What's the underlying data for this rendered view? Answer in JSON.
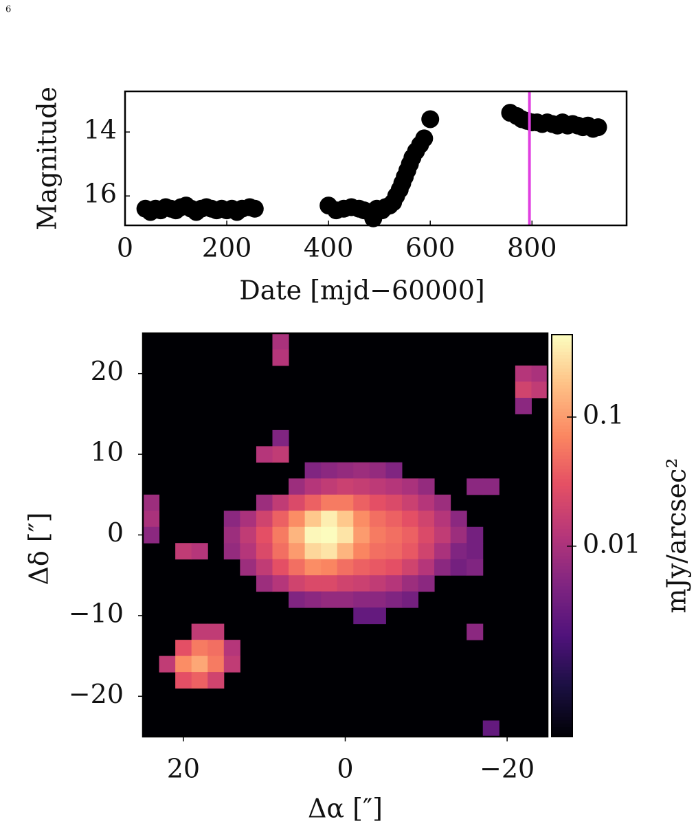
{
  "page_number": "6",
  "chart_data": [
    {
      "type": "scatter",
      "xlabel": "Date [mjd−60000]",
      "ylabel": "Magnitude",
      "color": "#000000",
      "x": [
        40,
        50,
        60,
        70,
        80,
        90,
        100,
        110,
        120,
        130,
        140,
        150,
        160,
        170,
        180,
        190,
        200,
        210,
        220,
        230,
        245,
        255,
        400,
        415,
        430,
        445,
        460,
        470,
        480,
        488,
        495,
        505,
        512,
        520,
        527,
        533,
        540,
        545,
        550,
        555,
        560,
        565,
        572,
        580,
        588,
        600,
        757,
        770,
        780,
        790,
        800,
        810,
        820,
        830,
        840,
        850,
        860,
        870,
        880,
        890,
        900,
        910,
        920,
        930
      ],
      "values": [
        16.4,
        16.5,
        16.4,
        16.45,
        16.35,
        16.4,
        16.45,
        16.35,
        16.3,
        16.4,
        16.5,
        16.4,
        16.35,
        16.4,
        16.45,
        16.4,
        16.45,
        16.4,
        16.5,
        16.4,
        16.35,
        16.4,
        16.3,
        16.45,
        16.4,
        16.35,
        16.4,
        16.45,
        16.5,
        16.7,
        16.4,
        16.45,
        16.35,
        16.3,
        16.2,
        16.0,
        15.8,
        15.6,
        15.4,
        15.2,
        15.0,
        14.8,
        14.6,
        14.4,
        14.2,
        13.6,
        13.4,
        13.5,
        13.6,
        13.65,
        13.7,
        13.7,
        13.75,
        13.7,
        13.75,
        13.8,
        13.7,
        13.8,
        13.75,
        13.8,
        13.85,
        13.8,
        13.9,
        13.85
      ],
      "xlim": [
        0,
        986
      ],
      "ylim": [
        16.92,
        12.73
      ],
      "xticks": [
        0,
        200,
        400,
        600,
        800
      ],
      "yticks": [
        14,
        16
      ],
      "vlines": [
        {
          "x": 795,
          "color": "#e040e0"
        }
      ]
    },
    {
      "type": "heatmap",
      "xlabel": "Δα [″]",
      "ylabel": "Δδ [″]",
      "colorbar_label": "mJy/arcsec²",
      "colormap": "magma",
      "color_scale": "log",
      "clim": [
        0.000335,
        0.435
      ],
      "cticks": [
        0.1,
        0.01
      ],
      "xlim": [
        25,
        -25
      ],
      "ylim": [
        -25,
        25
      ],
      "xticks": [
        20,
        0,
        {
          "value": -20,
          "label": "−20"
        }
      ],
      "yticks": [
        20,
        10,
        0,
        {
          "value": -10,
          "label": "−10"
        },
        {
          "value": -20,
          "label": "−20"
        }
      ],
      "x": [
        24,
        22,
        20,
        18,
        16,
        14,
        12,
        10,
        8,
        6,
        4,
        2,
        0,
        -2,
        -4,
        -6,
        -8,
        -10,
        -12,
        -14,
        -16,
        -18,
        -20,
        -22,
        -24
      ],
      "y": [
        24,
        22,
        20,
        18,
        16,
        14,
        12,
        10,
        8,
        6,
        4,
        2,
        0,
        -2,
        -4,
        -6,
        -8,
        -10,
        -12,
        -14,
        -16,
        -18,
        -20,
        -22,
        -24
      ],
      "z": [
        [
          null,
          null,
          null,
          null,
          null,
          null,
          null,
          null,
          0.01,
          null,
          null,
          null,
          null,
          null,
          null,
          null,
          null,
          null,
          null,
          null,
          null,
          null,
          null,
          null,
          null
        ],
        [
          null,
          null,
          null,
          null,
          null,
          null,
          null,
          null,
          0.012,
          null,
          null,
          null,
          null,
          null,
          null,
          null,
          null,
          null,
          null,
          null,
          null,
          null,
          null,
          null,
          null
        ],
        [
          null,
          null,
          null,
          null,
          null,
          null,
          null,
          null,
          null,
          null,
          null,
          null,
          null,
          null,
          null,
          null,
          null,
          null,
          null,
          null,
          null,
          null,
          null,
          0.012,
          0.01
        ],
        [
          null,
          null,
          null,
          null,
          null,
          null,
          null,
          null,
          null,
          null,
          null,
          null,
          null,
          null,
          null,
          null,
          null,
          null,
          null,
          null,
          null,
          null,
          null,
          0.02,
          0.015
        ],
        [
          null,
          null,
          null,
          null,
          null,
          null,
          null,
          null,
          null,
          null,
          null,
          null,
          null,
          null,
          null,
          null,
          null,
          null,
          null,
          null,
          null,
          null,
          null,
          0.006,
          null
        ],
        [
          null,
          null,
          null,
          null,
          null,
          null,
          null,
          null,
          null,
          null,
          null,
          null,
          null,
          null,
          null,
          null,
          null,
          null,
          null,
          null,
          null,
          null,
          null,
          null,
          null
        ],
        [
          null,
          null,
          null,
          null,
          null,
          null,
          null,
          null,
          0.005,
          null,
          null,
          null,
          null,
          null,
          null,
          null,
          null,
          null,
          null,
          null,
          null,
          null,
          null,
          null,
          null
        ],
        [
          null,
          null,
          null,
          null,
          null,
          null,
          null,
          0.012,
          0.015,
          null,
          null,
          null,
          null,
          null,
          null,
          null,
          null,
          null,
          null,
          null,
          null,
          null,
          null,
          null,
          null
        ],
        [
          null,
          null,
          null,
          null,
          null,
          null,
          null,
          null,
          null,
          null,
          0.005,
          0.006,
          0.007,
          0.008,
          0.007,
          0.005,
          null,
          null,
          null,
          null,
          null,
          null,
          null,
          null,
          null
        ],
        [
          null,
          null,
          null,
          null,
          null,
          null,
          null,
          null,
          null,
          0.008,
          0.012,
          0.015,
          0.018,
          0.016,
          0.014,
          0.012,
          0.01,
          0.007,
          null,
          null,
          0.006,
          0.006,
          null,
          null,
          null
        ],
        [
          0.008,
          null,
          null,
          null,
          null,
          null,
          null,
          0.008,
          0.015,
          0.025,
          0.04,
          0.06,
          0.06,
          0.04,
          0.03,
          0.025,
          0.018,
          0.012,
          0.008,
          null,
          null,
          null,
          null,
          null,
          null
        ],
        [
          0.01,
          null,
          null,
          null,
          null,
          0.006,
          0.01,
          0.02,
          0.04,
          0.08,
          0.2,
          0.35,
          0.2,
          0.08,
          0.05,
          0.04,
          0.03,
          0.02,
          0.012,
          0.006,
          null,
          null,
          null,
          null,
          null
        ],
        [
          0.006,
          null,
          null,
          null,
          null,
          0.008,
          0.015,
          0.03,
          0.06,
          0.15,
          0.4,
          0.43,
          0.3,
          0.1,
          0.06,
          0.05,
          0.04,
          0.025,
          0.015,
          0.008,
          0.004,
          null,
          null,
          null,
          null
        ],
        [
          null,
          null,
          0.015,
          0.012,
          null,
          0.007,
          0.012,
          0.025,
          0.05,
          0.1,
          0.25,
          0.3,
          0.15,
          0.07,
          0.05,
          0.045,
          0.035,
          0.02,
          0.01,
          0.005,
          0.004,
          null,
          null,
          null,
          null
        ],
        [
          null,
          null,
          null,
          null,
          null,
          null,
          0.008,
          0.015,
          0.03,
          0.05,
          0.08,
          0.07,
          0.05,
          0.04,
          0.035,
          0.03,
          0.02,
          0.012,
          0.006,
          0.004,
          0.005,
          null,
          null,
          null,
          null
        ],
        [
          null,
          null,
          null,
          null,
          null,
          null,
          null,
          0.008,
          0.012,
          0.02,
          0.025,
          0.025,
          0.02,
          0.018,
          0.015,
          0.012,
          0.008,
          0.006,
          null,
          null,
          null,
          null,
          null,
          null,
          null
        ],
        [
          null,
          null,
          null,
          null,
          null,
          null,
          null,
          null,
          null,
          0.005,
          0.006,
          0.007,
          0.007,
          0.006,
          0.006,
          0.005,
          0.004,
          null,
          null,
          null,
          null,
          null,
          null,
          null,
          null
        ],
        [
          null,
          null,
          null,
          null,
          null,
          null,
          null,
          null,
          null,
          null,
          null,
          null,
          null,
          0.003,
          0.003,
          null,
          null,
          null,
          null,
          null,
          null,
          null,
          null,
          null,
          null
        ],
        [
          null,
          null,
          null,
          0.015,
          0.015,
          null,
          null,
          null,
          null,
          null,
          null,
          null,
          null,
          null,
          null,
          null,
          null,
          null,
          null,
          null,
          0.006,
          null,
          null,
          null,
          null
        ],
        [
          null,
          null,
          0.03,
          0.06,
          0.05,
          0.012,
          null,
          null,
          null,
          null,
          null,
          null,
          null,
          null,
          null,
          null,
          null,
          null,
          null,
          null,
          null,
          null,
          null,
          null,
          null
        ],
        [
          null,
          0.015,
          0.08,
          0.12,
          0.06,
          0.015,
          null,
          null,
          null,
          null,
          null,
          null,
          null,
          null,
          null,
          null,
          null,
          null,
          null,
          null,
          null,
          null,
          null,
          null,
          null
        ],
        [
          null,
          null,
          0.03,
          0.04,
          0.02,
          null,
          null,
          null,
          null,
          null,
          null,
          null,
          null,
          null,
          null,
          null,
          null,
          null,
          null,
          null,
          null,
          null,
          null,
          null,
          null
        ],
        [
          null,
          null,
          null,
          null,
          null,
          null,
          null,
          null,
          null,
          null,
          null,
          null,
          null,
          null,
          null,
          null,
          null,
          null,
          null,
          null,
          null,
          null,
          null,
          null,
          null
        ],
        [
          null,
          null,
          null,
          null,
          null,
          null,
          null,
          null,
          null,
          null,
          null,
          null,
          null,
          null,
          null,
          null,
          null,
          null,
          null,
          null,
          null,
          null,
          null,
          null,
          null
        ],
        [
          null,
          null,
          null,
          null,
          null,
          null,
          null,
          null,
          null,
          null,
          null,
          null,
          null,
          null,
          null,
          null,
          null,
          null,
          null,
          null,
          null,
          0.003,
          null,
          null,
          null
        ]
      ]
    }
  ]
}
